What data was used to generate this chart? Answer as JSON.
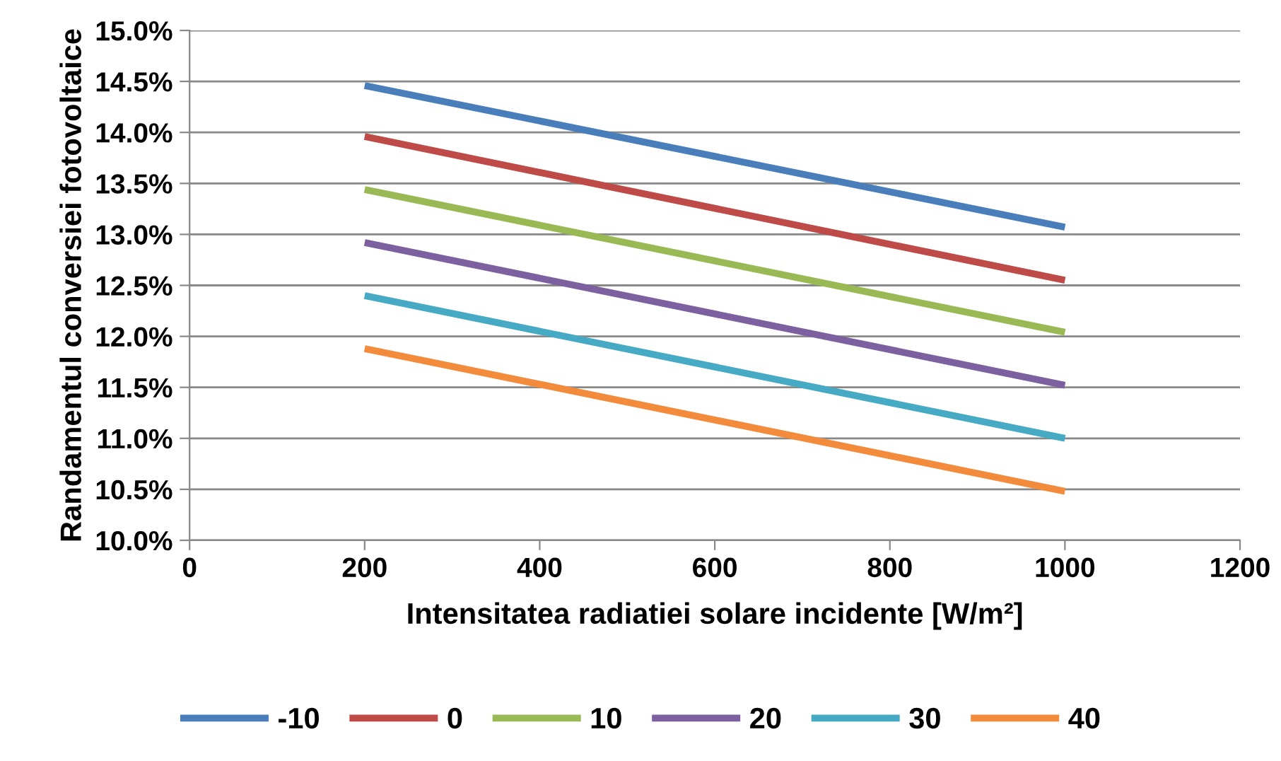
{
  "chart_data": {
    "type": "line",
    "xlabel": "Intensitatea radiatiei solare incidente [W/m²]",
    "ylabel": "Randamentul conversiei fotovoltaice",
    "x": [
      200,
      1000
    ],
    "series": [
      {
        "name": "-10",
        "color": "#4a7ebb",
        "values": [
          14.46,
          13.07
        ]
      },
      {
        "name": "0",
        "color": "#be4b48",
        "values": [
          13.96,
          12.55
        ]
      },
      {
        "name": "10",
        "color": "#98b954",
        "values": [
          13.44,
          12.04
        ]
      },
      {
        "name": "20",
        "color": "#7d60a0",
        "values": [
          12.92,
          11.52
        ]
      },
      {
        "name": "30",
        "color": "#46aac5",
        "values": [
          12.4,
          11.0
        ]
      },
      {
        "name": "40",
        "color": "#f38b3c",
        "values": [
          11.88,
          10.48
        ]
      }
    ],
    "xlim": [
      0,
      1200
    ],
    "xticks": [
      0,
      200,
      400,
      600,
      800,
      1000,
      1200
    ],
    "ylim": [
      10,
      15
    ],
    "yticks": [
      {
        "value": 10,
        "label": "10.0%"
      },
      {
        "value": 10.5,
        "label": "10.5%"
      },
      {
        "value": 11,
        "label": "11.0%"
      },
      {
        "value": 11.5,
        "label": "11.5%"
      },
      {
        "value": 12,
        "label": "12.0%"
      },
      {
        "value": 12.5,
        "label": "12.5%"
      },
      {
        "value": 13,
        "label": "13.0%"
      },
      {
        "value": 13.5,
        "label": "13.5%"
      },
      {
        "value": 14,
        "label": "14.0%"
      },
      {
        "value": 14.5,
        "label": "14.5%"
      },
      {
        "value": 15,
        "label": "15.0%"
      }
    ],
    "grid": "y",
    "legend": "bottom",
    "marker": "none",
    "line_style": "solid"
  }
}
